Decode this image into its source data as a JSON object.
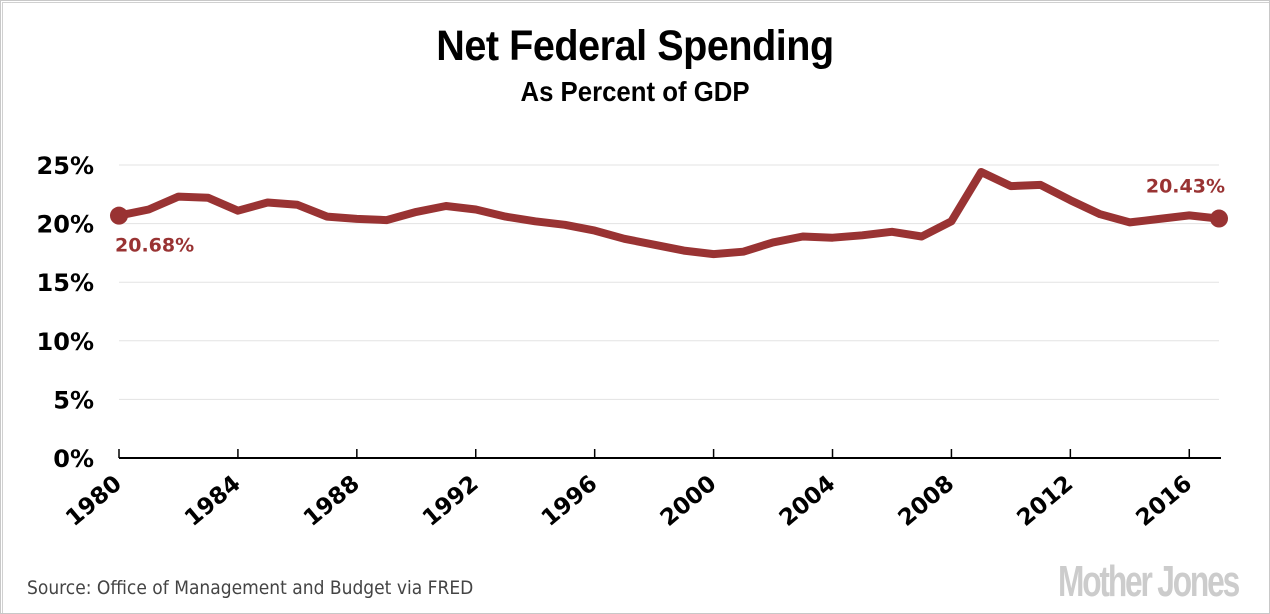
{
  "chart_data": {
    "type": "line",
    "title": "Net Federal Spending",
    "subtitle": "As Percent of GDP",
    "xlabel": "",
    "ylabel": "",
    "x": [
      1980,
      1981,
      1982,
      1983,
      1984,
      1985,
      1986,
      1987,
      1988,
      1989,
      1990,
      1991,
      1992,
      1993,
      1994,
      1995,
      1996,
      1997,
      1998,
      1999,
      2000,
      2001,
      2002,
      2003,
      2004,
      2005,
      2006,
      2007,
      2008,
      2009,
      2010,
      2011,
      2012,
      2013,
      2014,
      2015,
      2016,
      2017
    ],
    "series": [
      {
        "name": "Net Federal Spending (% of GDP)",
        "color": "#993333",
        "values": [
          20.68,
          21.2,
          22.3,
          22.2,
          21.1,
          21.8,
          21.6,
          20.6,
          20.4,
          20.3,
          21.0,
          21.5,
          21.2,
          20.6,
          20.2,
          19.9,
          19.4,
          18.7,
          18.2,
          17.7,
          17.4,
          17.6,
          18.4,
          18.9,
          18.8,
          19.0,
          19.3,
          18.9,
          20.2,
          24.4,
          23.2,
          23.3,
          22.0,
          20.8,
          20.1,
          20.4,
          20.7,
          20.43
        ]
      }
    ],
    "xlim": [
      1980,
      2017
    ],
    "ylim": [
      0,
      25
    ],
    "yticks": [
      0,
      5,
      10,
      15,
      20,
      25
    ],
    "ytick_labels": [
      "0%",
      "5%",
      "10%",
      "15%",
      "20%",
      "25%"
    ],
    "xticks": [
      1980,
      1984,
      1988,
      1992,
      1996,
      2000,
      2004,
      2008,
      2012,
      2016
    ],
    "xtick_labels": [
      "1980",
      "1984",
      "1988",
      "1992",
      "1996",
      "2000",
      "2004",
      "2008",
      "2012",
      "2016"
    ],
    "grid": true,
    "legend": "none",
    "annotations": [
      {
        "x": 1980,
        "y": 20.68,
        "text": "20.68%",
        "position": "below-right"
      },
      {
        "x": 2017,
        "y": 20.43,
        "text": "20.43%",
        "position": "above-left"
      }
    ]
  },
  "footer": {
    "source": "Source: Office of Management and Budget via FRED",
    "logo": "Mother Jones"
  },
  "colors": {
    "line": "#993333",
    "grid": "#e3e3e3",
    "axis": "#000000",
    "logo": "#cccccc"
  }
}
